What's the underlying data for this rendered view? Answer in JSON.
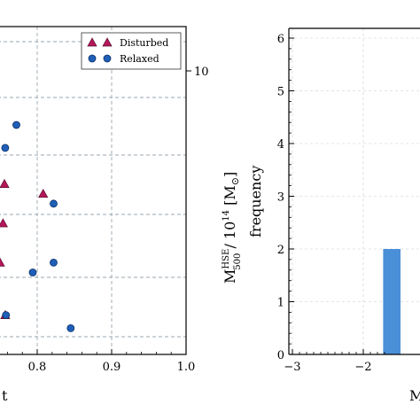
{
  "chart_data": [
    {
      "type": "scatter",
      "xticks": [
        "0.8",
        "0.9",
        "1.0"
      ],
      "xtick_values": [
        0.8,
        0.9,
        1.0
      ],
      "xlim": [
        0.7,
        1.0
      ],
      "xlabel_fragment": "t",
      "right_yticks": [
        "10"
      ],
      "right_ylabel": {
        "main": "M",
        "sup": "HSE",
        "sub": "500",
        "rest": " / 10",
        "exp": "14",
        "unit": " [M",
        "unit_sub": "⊙",
        "unit_close": "]"
      },
      "grid": true,
      "legend": {
        "placement": "top-right",
        "entries": [
          {
            "name": "Disturbed",
            "marker": "triangle",
            "color": "#b5175a"
          },
          {
            "name": "Relaxed",
            "marker": "circle",
            "color": "#1f5fb8"
          }
        ]
      },
      "series": [
        {
          "name": "Disturbed",
          "marker": "triangle",
          "color": "#b5175a",
          "points": [
            [
              0.756,
              0.52
            ],
            [
              0.808,
              0.49
            ],
            [
              0.754,
              0.4
            ],
            [
              0.75,
              0.28
            ],
            [
              0.757,
              0.12
            ]
          ]
        },
        {
          "name": "Relaxed",
          "marker": "circle",
          "color": "#1f5fb8",
          "points": [
            [
              0.772,
              0.7
            ],
            [
              0.757,
              0.63
            ],
            [
              0.822,
              0.46
            ],
            [
              0.822,
              0.28
            ],
            [
              0.794,
              0.25
            ],
            [
              0.758,
              0.12
            ],
            [
              0.845,
              0.08
            ]
          ]
        }
      ],
      "ylim": [
        0,
        1
      ]
    },
    {
      "type": "bar",
      "ylabel": "frequency",
      "xlabel_fragment": "M",
      "xticks": [
        "−3",
        "−2"
      ],
      "xtick_values": [
        -3,
        -2
      ],
      "yticks": [
        "0",
        "1",
        "2",
        "3",
        "4",
        "5",
        "6"
      ],
      "ylim": [
        0,
        6.2
      ],
      "xlim": [
        -3.05,
        -1.6
      ],
      "grid": true,
      "bar_color": "#4a90d9",
      "bins": [
        {
          "x0": -1.72,
          "x1": -1.6,
          "value": 2
        }
      ]
    }
  ]
}
